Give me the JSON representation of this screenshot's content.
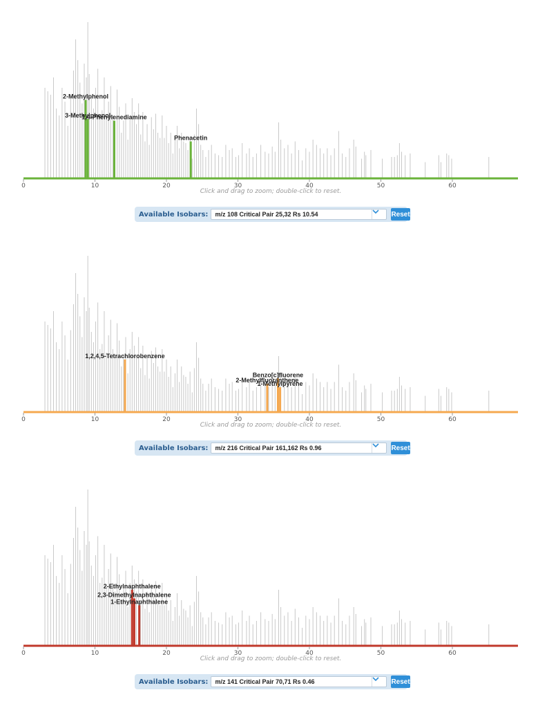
{
  "background_peaks": [
    [
      3.0,
      0.52
    ],
    [
      3.4,
      0.5
    ],
    [
      3.8,
      0.48
    ],
    [
      4.2,
      0.58
    ],
    [
      4.6,
      0.4
    ],
    [
      5.0,
      0.36
    ],
    [
      5.4,
      0.52
    ],
    [
      5.8,
      0.44
    ],
    [
      6.2,
      0.3
    ],
    [
      6.6,
      0.47
    ],
    [
      7.0,
      0.62
    ],
    [
      7.3,
      0.8
    ],
    [
      7.6,
      0.68
    ],
    [
      7.9,
      0.55
    ],
    [
      8.2,
      0.43
    ],
    [
      8.5,
      0.66
    ],
    [
      8.8,
      0.58
    ],
    [
      9.0,
      0.9
    ],
    [
      9.2,
      0.6
    ],
    [
      9.5,
      0.46
    ],
    [
      9.8,
      0.4
    ],
    [
      10.1,
      0.52
    ],
    [
      10.4,
      0.63
    ],
    [
      10.7,
      0.36
    ],
    [
      11.0,
      0.39
    ],
    [
      11.3,
      0.58
    ],
    [
      11.6,
      0.34
    ],
    [
      11.9,
      0.44
    ],
    [
      12.2,
      0.53
    ],
    [
      12.5,
      0.36
    ],
    [
      12.8,
      0.31
    ],
    [
      13.1,
      0.51
    ],
    [
      13.4,
      0.41
    ],
    [
      13.7,
      0.26
    ],
    [
      14.0,
      0.33
    ],
    [
      14.3,
      0.43
    ],
    [
      14.6,
      0.22
    ],
    [
      14.9,
      0.36
    ],
    [
      15.2,
      0.46
    ],
    [
      15.5,
      0.38
    ],
    [
      15.8,
      0.31
    ],
    [
      16.1,
      0.43
    ],
    [
      16.4,
      0.25
    ],
    [
      16.7,
      0.38
    ],
    [
      17.0,
      0.21
    ],
    [
      17.3,
      0.31
    ],
    [
      17.6,
      0.19
    ],
    [
      17.9,
      0.35
    ],
    [
      18.2,
      0.28
    ],
    [
      18.5,
      0.37
    ],
    [
      18.8,
      0.26
    ],
    [
      19.1,
      0.23
    ],
    [
      19.4,
      0.36
    ],
    [
      19.7,
      0.23
    ],
    [
      20.0,
      0.3
    ],
    [
      20.3,
      0.2
    ],
    [
      20.6,
      0.26
    ],
    [
      20.9,
      0.14
    ],
    [
      21.2,
      0.22
    ],
    [
      21.5,
      0.3
    ],
    [
      21.8,
      0.17
    ],
    [
      22.1,
      0.26
    ],
    [
      22.4,
      0.21
    ],
    [
      22.7,
      0.2
    ],
    [
      23.0,
      0.16
    ],
    [
      23.3,
      0.23
    ],
    [
      23.6,
      0.11
    ],
    [
      23.9,
      0.25
    ],
    [
      24.2,
      0.4
    ],
    [
      24.5,
      0.31
    ],
    [
      24.8,
      0.19
    ],
    [
      25.1,
      0.16
    ],
    [
      25.5,
      0.12
    ],
    [
      25.9,
      0.16
    ],
    [
      26.3,
      0.19
    ],
    [
      26.8,
      0.14
    ],
    [
      27.3,
      0.13
    ],
    [
      27.8,
      0.12
    ],
    [
      28.3,
      0.19
    ],
    [
      28.8,
      0.16
    ],
    [
      29.2,
      0.17
    ],
    [
      29.7,
      0.12
    ],
    [
      30.1,
      0.13
    ],
    [
      30.6,
      0.2
    ],
    [
      31.2,
      0.14
    ],
    [
      31.6,
      0.17
    ],
    [
      32.1,
      0.12
    ],
    [
      32.6,
      0.14
    ],
    [
      33.2,
      0.19
    ],
    [
      33.8,
      0.15
    ],
    [
      34.3,
      0.14
    ],
    [
      34.8,
      0.18
    ],
    [
      35.2,
      0.15
    ],
    [
      35.7,
      0.32
    ],
    [
      36.0,
      0.22
    ],
    [
      36.5,
      0.17
    ],
    [
      37.0,
      0.19
    ],
    [
      37.5,
      0.14
    ],
    [
      38.0,
      0.21
    ],
    [
      38.5,
      0.16
    ],
    [
      39.0,
      0.1
    ],
    [
      39.5,
      0.17
    ],
    [
      40.0,
      0.15
    ],
    [
      40.5,
      0.22
    ],
    [
      41.0,
      0.19
    ],
    [
      41.5,
      0.17
    ],
    [
      42.0,
      0.14
    ],
    [
      42.5,
      0.17
    ],
    [
      43.0,
      0.13
    ],
    [
      43.5,
      0.17
    ],
    [
      44.1,
      0.27
    ],
    [
      44.6,
      0.14
    ],
    [
      45.1,
      0.12
    ],
    [
      45.6,
      0.17
    ],
    [
      46.2,
      0.22
    ],
    [
      46.5,
      0.18
    ],
    [
      47.3,
      0.11
    ],
    [
      47.7,
      0.15
    ],
    [
      47.9,
      0.13
    ],
    [
      48.6,
      0.16
    ],
    [
      50.2,
      0.11
    ],
    [
      51.5,
      0.12
    ],
    [
      51.9,
      0.12
    ],
    [
      52.3,
      0.13
    ],
    [
      52.6,
      0.2
    ],
    [
      52.9,
      0.15
    ],
    [
      53.4,
      0.13
    ],
    [
      54.1,
      0.14
    ],
    [
      56.2,
      0.09
    ],
    [
      58.1,
      0.13
    ],
    [
      58.4,
      0.09
    ],
    [
      59.2,
      0.14
    ],
    [
      59.5,
      0.13
    ],
    [
      59.9,
      0.11
    ],
    [
      65.1,
      0.12
    ]
  ],
  "panels": [
    {
      "color": "#6ab33a",
      "chart_data": {
        "type": "bar",
        "title": "",
        "xlabel": "",
        "ylabel": "",
        "xlim": [
          0,
          69
        ],
        "ylim": [
          0,
          1
        ],
        "xticks": [
          "0",
          "10",
          "20",
          "30",
          "40",
          "50",
          "60"
        ],
        "hint": "Click and drag to zoom; double-click to reset.",
        "highlighted": [
          {
            "x": 8.7,
            "y": 0.45,
            "label": "2-Methylphenol"
          },
          {
            "x": 9.0,
            "y": 0.34,
            "label": "3-Methylphenol"
          },
          {
            "x": 12.7,
            "y": 0.33,
            "label": "1,4-Phenylenediamine"
          },
          {
            "x": 23.4,
            "y": 0.21,
            "label": "Phenacetin"
          }
        ]
      },
      "isobars": {
        "title": "Available Isobars:",
        "selected": "m/z 108  Critical Pair 25,32  Rs 10.54",
        "reset_label": "Reset"
      }
    },
    {
      "color": "#f5a84f",
      "chart_data": {
        "type": "bar",
        "title": "",
        "xlabel": "",
        "ylabel": "",
        "xlim": [
          0,
          69
        ],
        "ylim": [
          0,
          1
        ],
        "xticks": [
          "0",
          "10",
          "20",
          "30",
          "40",
          "50",
          "60"
        ],
        "hint": "Click and drag to zoom; double-click to reset.",
        "highlighted": [
          {
            "x": 14.2,
            "y": 0.3,
            "label": "1,2,4,5-Tetrachlorobenzene"
          },
          {
            "x": 34.1,
            "y": 0.16,
            "label": "2-Methylfluoranthene"
          },
          {
            "x": 35.6,
            "y": 0.19,
            "label": "Benzo[c]fluorene"
          },
          {
            "x": 35.9,
            "y": 0.14,
            "label": "1-Methylpyrene"
          }
        ]
      },
      "isobars": {
        "title": "Available Isobars:",
        "selected": "m/z 216  Critical Pair 161,162  Rs 0.96",
        "reset_label": "Reset"
      }
    },
    {
      "color": "#c0392b",
      "chart_data": {
        "type": "bar",
        "title": "",
        "xlabel": "",
        "ylabel": "",
        "xlim": [
          0,
          69
        ],
        "ylim": [
          0,
          1
        ],
        "xticks": [
          "0",
          "10",
          "20",
          "30",
          "40",
          "50",
          "60"
        ],
        "hint": "Click and drag to zoom; double-click to reset.",
        "highlighted": [
          {
            "x": 15.2,
            "y": 0.32,
            "label": "2-Ethylnaphthalene"
          },
          {
            "x": 15.5,
            "y": 0.27,
            "label": "2,3-Dimethylnaphthalene"
          },
          {
            "x": 16.2,
            "y": 0.23,
            "label": "1-Ethylnaphthalene"
          }
        ]
      },
      "isobars": {
        "title": "Available Isobars:",
        "selected": "m/z 141  Critical Pair 70,71  Rs 0.46",
        "reset_label": "Reset"
      }
    }
  ]
}
